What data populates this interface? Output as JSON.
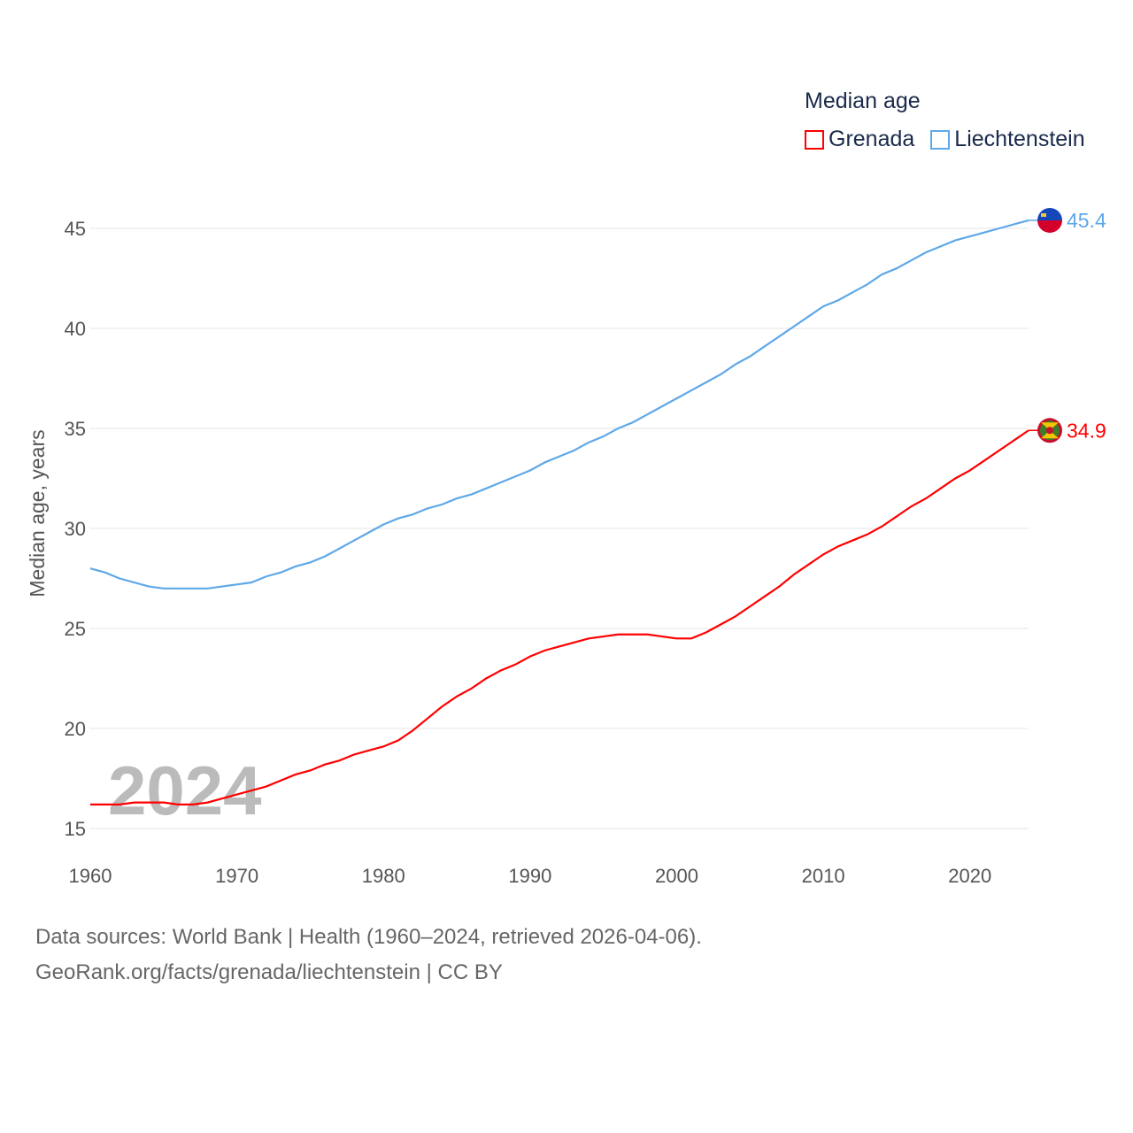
{
  "legend": {
    "title": "Median age",
    "items": [
      {
        "label": "Grenada",
        "color": "#ff0000"
      },
      {
        "label": "Liechtenstein",
        "color": "#5fa8e8"
      }
    ]
  },
  "year_watermark": "2024",
  "footer": {
    "line1": "Data sources: World Bank | Health (1960–2024, retrieved 2026-04-06).",
    "line2": "GeoRank.org/facts/grenada/liechtenstein | CC BY"
  },
  "chart_data": {
    "type": "line",
    "title": "Median age",
    "xlabel": "",
    "ylabel": "Median age, years",
    "xlim": [
      1960,
      2024
    ],
    "ylim": [
      15,
      45
    ],
    "xticks": [
      1960,
      1970,
      1980,
      1990,
      2000,
      2010,
      2020
    ],
    "yticks": [
      15,
      20,
      25,
      30,
      35,
      40,
      45
    ],
    "grid": true,
    "legend_position": "top-right",
    "x": [
      1960,
      1961,
      1962,
      1963,
      1964,
      1965,
      1966,
      1967,
      1968,
      1969,
      1970,
      1971,
      1972,
      1973,
      1974,
      1975,
      1976,
      1977,
      1978,
      1979,
      1980,
      1981,
      1982,
      1983,
      1984,
      1985,
      1986,
      1987,
      1988,
      1989,
      1990,
      1991,
      1992,
      1993,
      1994,
      1995,
      1996,
      1997,
      1998,
      1999,
      2000,
      2001,
      2002,
      2003,
      2004,
      2005,
      2006,
      2007,
      2008,
      2009,
      2010,
      2011,
      2012,
      2013,
      2014,
      2015,
      2016,
      2017,
      2018,
      2019,
      2020,
      2021,
      2022,
      2023,
      2024
    ],
    "series": [
      {
        "name": "Grenada",
        "color": "#ff0000",
        "end_label": "34.9",
        "values": [
          16.2,
          16.2,
          16.2,
          16.3,
          16.3,
          16.3,
          16.2,
          16.2,
          16.3,
          16.5,
          16.7,
          16.9,
          17.1,
          17.4,
          17.7,
          17.9,
          18.2,
          18.4,
          18.7,
          18.9,
          19.1,
          19.4,
          19.9,
          20.5,
          21.1,
          21.6,
          22.0,
          22.5,
          22.9,
          23.2,
          23.6,
          23.9,
          24.1,
          24.3,
          24.5,
          24.6,
          24.7,
          24.7,
          24.7,
          24.6,
          24.5,
          24.5,
          24.8,
          25.2,
          25.6,
          26.1,
          26.6,
          27.1,
          27.7,
          28.2,
          28.7,
          29.1,
          29.4,
          29.7,
          30.1,
          30.6,
          31.1,
          31.5,
          32.0,
          32.5,
          32.9,
          33.4,
          33.9,
          34.4,
          34.9
        ]
      },
      {
        "name": "Liechtenstein",
        "color": "#5fa8e8",
        "end_label": "45.4",
        "values": [
          28.0,
          27.8,
          27.5,
          27.3,
          27.1,
          27.0,
          27.0,
          27.0,
          27.0,
          27.1,
          27.2,
          27.3,
          27.6,
          27.8,
          28.1,
          28.3,
          28.6,
          29.0,
          29.4,
          29.8,
          30.2,
          30.5,
          30.7,
          31.0,
          31.2,
          31.5,
          31.7,
          32.0,
          32.3,
          32.6,
          32.9,
          33.3,
          33.6,
          33.9,
          34.3,
          34.6,
          35.0,
          35.3,
          35.7,
          36.1,
          36.5,
          36.9,
          37.3,
          37.7,
          38.2,
          38.6,
          39.1,
          39.6,
          40.1,
          40.6,
          41.1,
          41.4,
          41.8,
          42.2,
          42.7,
          43.0,
          43.4,
          43.8,
          44.1,
          44.4,
          44.6,
          44.8,
          45.0,
          45.2,
          45.4
        ]
      }
    ]
  }
}
